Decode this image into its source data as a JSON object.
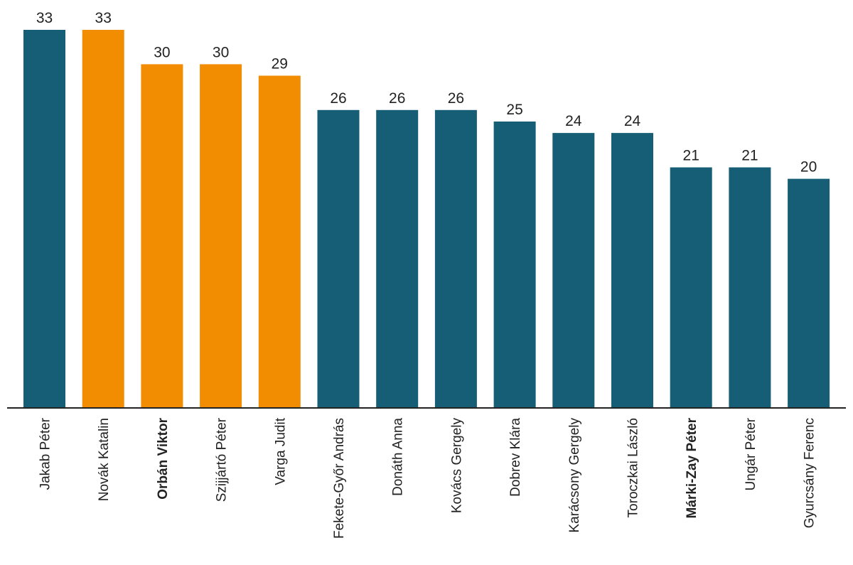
{
  "chart_data": {
    "type": "bar",
    "categories": [
      "Jakab Péter",
      "Novák Katalin",
      "Orbán Viktor",
      "Szijjártó Péter",
      "Varga Judit",
      "Fekete-Győr András",
      "Donáth Anna",
      "Kovács Gergely",
      "Dobrev Klára",
      "Karácsony Gergely",
      "Toroczkai László",
      "Márki-Zay Péter",
      "Ungár Péter",
      "Gyurcsány Ferenc"
    ],
    "values": [
      33,
      33,
      30,
      30,
      29,
      26,
      26,
      26,
      25,
      24,
      24,
      21,
      21,
      20
    ],
    "bar_colors": [
      "#155e75",
      "#f28c00",
      "#f28c00",
      "#f28c00",
      "#f28c00",
      "#155e75",
      "#155e75",
      "#155e75",
      "#155e75",
      "#155e75",
      "#155e75",
      "#155e75",
      "#155e75",
      "#155e75"
    ],
    "bold_categories": [
      "Orbán Viktor",
      "Márki-Zay Péter"
    ],
    "ylim": [
      0,
      33
    ],
    "grid": false,
    "colors": {
      "teal": "#155e75",
      "orange": "#f28c00",
      "axis": "#222222"
    }
  }
}
